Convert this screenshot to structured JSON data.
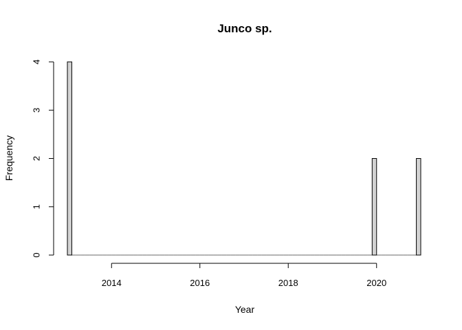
{
  "chart_data": {
    "type": "bar",
    "title": "Junco sp.",
    "xlabel": "Year",
    "ylabel": "Frequency",
    "x_ticks": [
      2014,
      2016,
      2018,
      2020
    ],
    "y_ticks": [
      0,
      1,
      2,
      3,
      4
    ],
    "xlim": [
      2013.0,
      2021.0
    ],
    "ylim": [
      0,
      4
    ],
    "bin_width": 0.1,
    "bars": [
      {
        "x": 2013.0,
        "value": 4
      },
      {
        "x": 2019.9,
        "value": 2
      },
      {
        "x": 2020.9,
        "value": 2
      }
    ],
    "colors": {
      "bar_fill": "#d3d3d3",
      "bar_stroke": "#000000"
    }
  }
}
